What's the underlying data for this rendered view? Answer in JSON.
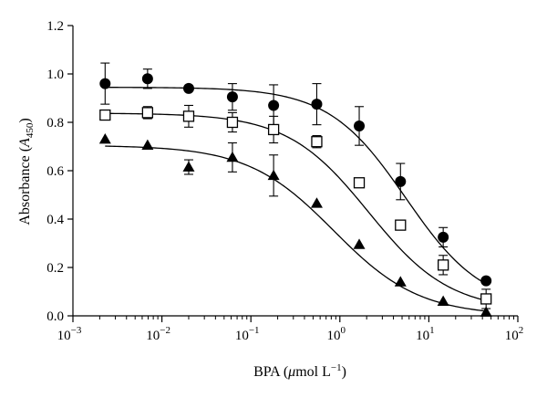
{
  "chart_data": {
    "type": "scatter",
    "title": "",
    "xlabel": "BPA (μmol L⁻¹)",
    "xlabel_parts": {
      "main": "BPA (",
      "mu": "μ",
      "unit": "mol L",
      "sup": "−1",
      "close": ")"
    },
    "ylabel": "Absorbance (A450)",
    "ylabel_parts": {
      "main": "Absorbance (",
      "var": "A",
      "sub": "450",
      "close": ")"
    },
    "x_scale": "log",
    "xlim": [
      0.001,
      100
    ],
    "ylim": [
      0.0,
      1.2
    ],
    "x_ticks": [
      {
        "value": 0.001,
        "base": "10",
        "exp": "−3"
      },
      {
        "value": 0.01,
        "base": "10",
        "exp": "−2"
      },
      {
        "value": 0.1,
        "base": "10",
        "exp": "−1"
      },
      {
        "value": 1,
        "base": "10",
        "exp": "0"
      },
      {
        "value": 10,
        "base": "10",
        "exp": "1"
      },
      {
        "value": 100,
        "base": "10",
        "exp": "2"
      }
    ],
    "y_ticks": [
      {
        "value": 0.0,
        "label": "0.0"
      },
      {
        "value": 0.2,
        "label": "0.2"
      },
      {
        "value": 0.4,
        "label": "0.4"
      },
      {
        "value": 0.6,
        "label": "0.6"
      },
      {
        "value": 0.8,
        "label": "0.8"
      },
      {
        "value": 1.0,
        "label": "1.0"
      },
      {
        "value": 1.2,
        "label": "1.2"
      }
    ],
    "grid": false,
    "legend": "none",
    "x": [
      0.0023,
      0.0069,
      0.02,
      0.062,
      0.18,
      0.55,
      1.65,
      4.8,
      14.5,
      44
    ],
    "series": [
      {
        "marker": "filled-circle",
        "y": [
          0.96,
          0.98,
          0.94,
          0.905,
          0.87,
          0.875,
          0.785,
          0.555,
          0.325,
          0.145
        ],
        "err": [
          0.085,
          0.04,
          0.0,
          0.055,
          0.085,
          0.085,
          0.08,
          0.075,
          0.04,
          0.0
        ],
        "fit": {
          "top": 0.945,
          "bottom": 0.03,
          "ic50": 5.5,
          "hill": 1.0
        }
      },
      {
        "marker": "open-square",
        "y": [
          0.83,
          0.84,
          0.825,
          0.8,
          0.77,
          0.72,
          0.55,
          0.375,
          0.21,
          0.07
        ],
        "err": [
          0.0,
          0.025,
          0.045,
          0.04,
          0.055,
          0.025,
          0.0,
          0.0,
          0.04,
          0.04
        ],
        "fit": {
          "top": 0.838,
          "bottom": 0.02,
          "ic50": 2.1,
          "hill": 0.95
        }
      },
      {
        "marker": "filled-triangle",
        "y": [
          0.73,
          0.705,
          0.615,
          0.655,
          0.58,
          0.465,
          0.295,
          0.14,
          0.06,
          0.015
        ],
        "err": [
          0.0,
          0.0,
          0.03,
          0.06,
          0.085,
          0.0,
          0.0,
          0.0,
          0.0,
          0.0
        ],
        "fit": {
          "top": 0.705,
          "bottom": 0.0,
          "ic50": 0.85,
          "hill": 0.9
        }
      }
    ]
  }
}
